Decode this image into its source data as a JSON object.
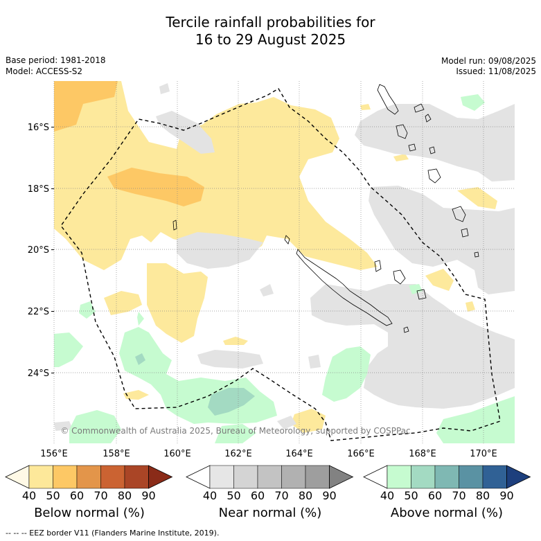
{
  "title_line1": "Tercile rainfall probabilities for",
  "title_line2": "16 to 29 August 2025",
  "base_period": "Base period: 1981-2018",
  "model": "Model: ACCESS-S2",
  "model_run": "Model run: 09/08/2025",
  "issued": "Issued: 11/08/2025",
  "copyright": "© Commonwealth of Australia 2025, Bureau of Meteorology, supported by COSPPac",
  "lat_labels": [
    "16°S",
    "18°S",
    "20°S",
    "22°S",
    "24°S"
  ],
  "lon_labels": [
    "156°E",
    "158°E",
    "160°E",
    "162°E",
    "164°E",
    "166°E",
    "168°E",
    "170°E"
  ],
  "colorbars": [
    {
      "title": "Below normal (%)",
      "ticks": [
        "40",
        "50",
        "60",
        "70",
        "80",
        "90"
      ],
      "colors": [
        "#fff9e6",
        "#fde89a",
        "#fdc865",
        "#e3954a",
        "#cb6332",
        "#aa4526",
        "#8a2b18"
      ]
    },
    {
      "title": "Near normal (%)",
      "ticks": [
        "40",
        "50",
        "60",
        "70",
        "80",
        "90"
      ],
      "colors": [
        "#ffffff",
        "#e6e6e6",
        "#d4d4d4",
        "#c3c3c3",
        "#b1b1b1",
        "#9e9e9e",
        "#828282"
      ]
    },
    {
      "title": "Above normal (%)",
      "ticks": [
        "40",
        "50",
        "60",
        "70",
        "80",
        "90"
      ],
      "colors": [
        "#ffffff",
        "#c6fbd0",
        "#a3dac2",
        "#7fb8b3",
        "#5a92a3",
        "#306195",
        "#1d3f7d"
      ]
    }
  ],
  "footer": "--  --  -- EEZ border V11 (Flanders Marine Institute, 2019)."
}
